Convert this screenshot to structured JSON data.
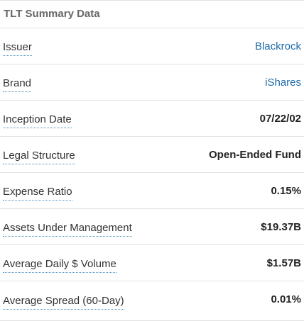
{
  "panel": {
    "title": "TLT Summary Data"
  },
  "rows": [
    {
      "label": "Issuer",
      "value": "Blackrock"
    },
    {
      "label": "Brand",
      "value": "iShares"
    },
    {
      "label": "Inception Date",
      "value": "07/22/02"
    },
    {
      "label": "Legal Structure",
      "value": "Open-Ended Fund"
    },
    {
      "label": "Expense Ratio",
      "value": "0.15%"
    },
    {
      "label": "Assets Under Management",
      "value": "$19.37B"
    },
    {
      "label": "Average Daily $ Volume",
      "value": "$1.57B"
    },
    {
      "label": "Average Spread (60-Day)",
      "value": "0.01%"
    }
  ],
  "colors": {
    "link": "#1f6aa8",
    "title": "#666666",
    "divider": "#e2e2e2"
  }
}
